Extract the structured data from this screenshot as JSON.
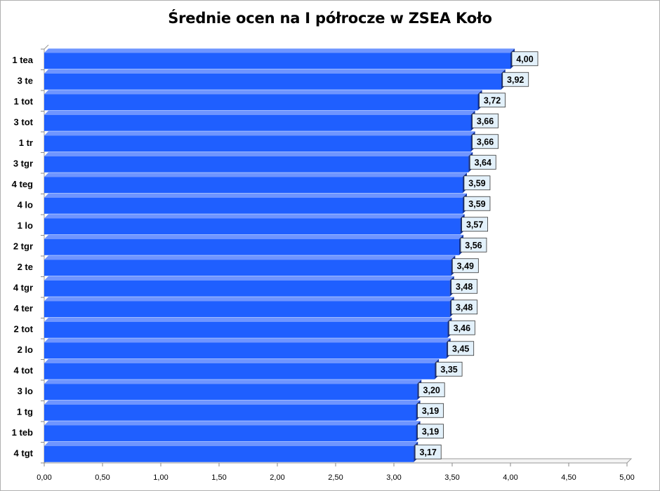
{
  "chart_data": {
    "type": "bar",
    "orientation": "horizontal",
    "title": "Średnie ocen na I półrocze w ZSEA Koło",
    "categories": [
      "1 tea",
      "3 te",
      "1 tot",
      "3 tot",
      "1 tr",
      "3 tgr",
      "4 teg",
      "4 lo",
      "1 lo",
      "2 tgr",
      "2 te",
      "4 tgr",
      "4 ter",
      "2 tot",
      "2 lo",
      "4 tot",
      "3 lo",
      "1 tg",
      "1 teb",
      "4 tgt"
    ],
    "values": [
      4.0,
      3.92,
      3.72,
      3.66,
      3.66,
      3.64,
      3.59,
      3.59,
      3.57,
      3.56,
      3.49,
      3.48,
      3.48,
      3.46,
      3.45,
      3.35,
      3.2,
      3.19,
      3.19,
      3.17
    ],
    "data_labels": [
      "4,00",
      "3,92",
      "3,72",
      "3,66",
      "3,66",
      "3,64",
      "3,59",
      "3,59",
      "3,57",
      "3,56",
      "3,49",
      "3,48",
      "3,48",
      "3,46",
      "3,45",
      "3,35",
      "3,20",
      "3,19",
      "3,19",
      "3,17"
    ],
    "xticks": [
      0,
      0.5,
      1,
      1.5,
      2,
      2.5,
      3,
      3.5,
      4,
      4.5,
      5
    ],
    "xtick_labels": [
      "0,00",
      "0,50",
      "1,00",
      "1,50",
      "2,00",
      "2,50",
      "3,00",
      "3,50",
      "4,00",
      "4,50",
      "5,00"
    ],
    "xlim": [
      0,
      5
    ],
    "xlabel": "",
    "ylabel": "",
    "grid": false,
    "legend": "none",
    "bar_color": "#1f5fff",
    "bar_top_color": "#6f95ff",
    "bar_side_color": "#0d2f9a",
    "label_box_color": "#e3f1fb"
  }
}
